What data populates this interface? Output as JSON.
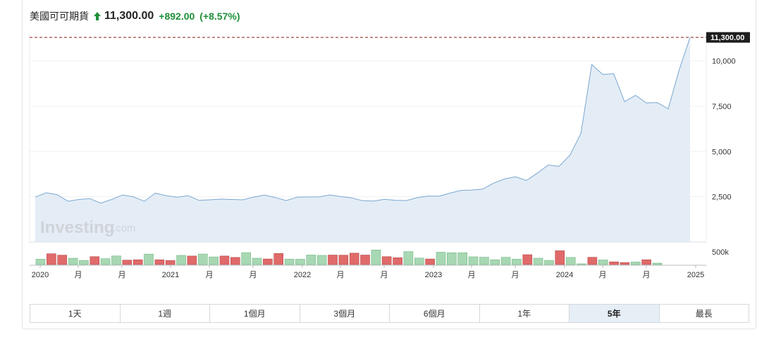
{
  "header": {
    "instrument": "美國可可期貨",
    "price": "11,300.00",
    "change": "+892.00",
    "change_pct": "(+8.57%)",
    "up_color": "#1f8f3a"
  },
  "watermark": {
    "brand_main": "Investing",
    "brand_suffix": ".com"
  },
  "current_price_label": "11,300.00",
  "chart_data": {
    "type": "area",
    "y_axis": {
      "min": 0,
      "max": 11500,
      "ticks": [
        2500,
        5000,
        7500,
        10000
      ],
      "tick_labels": [
        "2,500",
        "5,000",
        "7,500",
        "10,000"
      ]
    },
    "x_axis_labels": [
      "2020",
      "月",
      "月",
      "2021",
      "月",
      "月",
      "2022",
      "月",
      "月",
      "2023",
      "月",
      "月",
      "2024",
      "月",
      "月",
      "2025"
    ],
    "current_price": 11300,
    "price_series": [
      2480,
      2720,
      2620,
      2250,
      2350,
      2400,
      2150,
      2350,
      2600,
      2500,
      2250,
      2700,
      2560,
      2480,
      2560,
      2300,
      2330,
      2370,
      2350,
      2330,
      2480,
      2590,
      2460,
      2290,
      2480,
      2490,
      2500,
      2600,
      2510,
      2440,
      2280,
      2260,
      2360,
      2300,
      2290,
      2450,
      2540,
      2530,
      2700,
      2850,
      2870,
      2920,
      3250,
      3480,
      3600,
      3400,
      3800,
      4250,
      4180,
      4800,
      6000,
      9800,
      9250,
      9300,
      7750,
      8100,
      7680,
      7700,
      7350,
      9500,
      11300
    ],
    "volume": {
      "axis_label": "500k",
      "axis_value": 500000,
      "values": [
        0.42,
        0.85,
        0.74,
        0.5,
        0.32,
        0.62,
        0.46,
        0.68,
        0.35,
        0.38,
        0.82,
        0.38,
        0.32,
        0.72,
        0.67,
        0.83,
        0.6,
        0.67,
        0.56,
        0.94,
        0.5,
        0.44,
        0.88,
        0.43,
        0.42,
        0.75,
        0.72,
        0.75,
        0.74,
        0.9,
        0.75,
        1.15,
        0.62,
        0.54,
        1.02,
        0.51,
        0.44,
        0.97,
        0.93,
        0.93,
        0.61,
        0.58,
        0.38,
        0.57,
        0.42,
        0.78,
        0.5,
        0.33,
        1.09,
        0.56,
        0.04,
        0.57,
        0.36,
        0.21,
        0.16,
        0.2,
        0.38,
        0.11
      ],
      "colors": [
        "g",
        "r",
        "r",
        "g",
        "g",
        "r",
        "g",
        "g",
        "r",
        "r",
        "g",
        "r",
        "r",
        "g",
        "r",
        "g",
        "g",
        "r",
        "r",
        "g",
        "g",
        "r",
        "r",
        "g",
        "g",
        "g",
        "g",
        "r",
        "r",
        "r",
        "r",
        "g",
        "r",
        "r",
        "g",
        "g",
        "r",
        "g",
        "g",
        "g",
        "g",
        "g",
        "g",
        "g",
        "g",
        "r",
        "g",
        "g",
        "r",
        "g",
        "g",
        "r",
        "g",
        "r",
        "r",
        "g",
        "r",
        "g"
      ],
      "up_color": "#a8d8b3",
      "down_color": "#e06a6a"
    }
  },
  "ranges": [
    {
      "label": "1天"
    },
    {
      "label": "1週"
    },
    {
      "label": "1個月"
    },
    {
      "label": "3個月"
    },
    {
      "label": "6個月"
    },
    {
      "label": "1年"
    },
    {
      "label": "5年",
      "active": true
    },
    {
      "label": "最長"
    }
  ]
}
